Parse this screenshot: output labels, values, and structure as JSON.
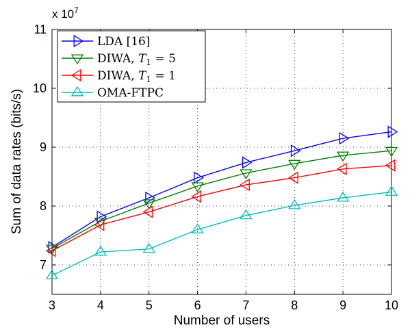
{
  "chart_data": {
    "type": "line",
    "xlabel": "Number of users",
    "ylabel": "Sum of data rates (bits/s)",
    "y_multiplier": {
      "base": "x 10",
      "exponent": "7"
    },
    "xlim": [
      3,
      10
    ],
    "ylim": [
      6.5,
      11
    ],
    "x_ticks": [
      3,
      4,
      5,
      6,
      7,
      8,
      9,
      10
    ],
    "y_ticks": [
      7,
      8,
      9,
      10,
      11
    ],
    "grid": true,
    "legend_position": "top-left",
    "x": [
      3,
      4,
      5,
      6,
      7,
      8,
      9,
      10
    ],
    "series": [
      {
        "name": "LDA [16]",
        "marker": "triangle-right",
        "color": "#0000ff",
        "values": [
          7.3,
          7.82,
          8.14,
          8.48,
          8.74,
          8.94,
          9.15,
          9.26
        ]
      },
      {
        "name": "DIWA, T1 = 5",
        "marker": "triangle-down",
        "color": "#008000",
        "values": [
          7.28,
          7.74,
          8.05,
          8.34,
          8.56,
          8.72,
          8.86,
          8.94
        ]
      },
      {
        "name": "DIWA, T1 = 1",
        "marker": "triangle-left",
        "color": "#ff0000",
        "values": [
          7.24,
          7.68,
          7.9,
          8.16,
          8.36,
          8.48,
          8.63,
          8.69
        ]
      },
      {
        "name": "OMA-FTPC",
        "marker": "triangle-up",
        "color": "#00bfbf",
        "values": [
          6.82,
          7.22,
          7.27,
          7.6,
          7.84,
          8.01,
          8.14,
          8.24
        ]
      }
    ]
  }
}
